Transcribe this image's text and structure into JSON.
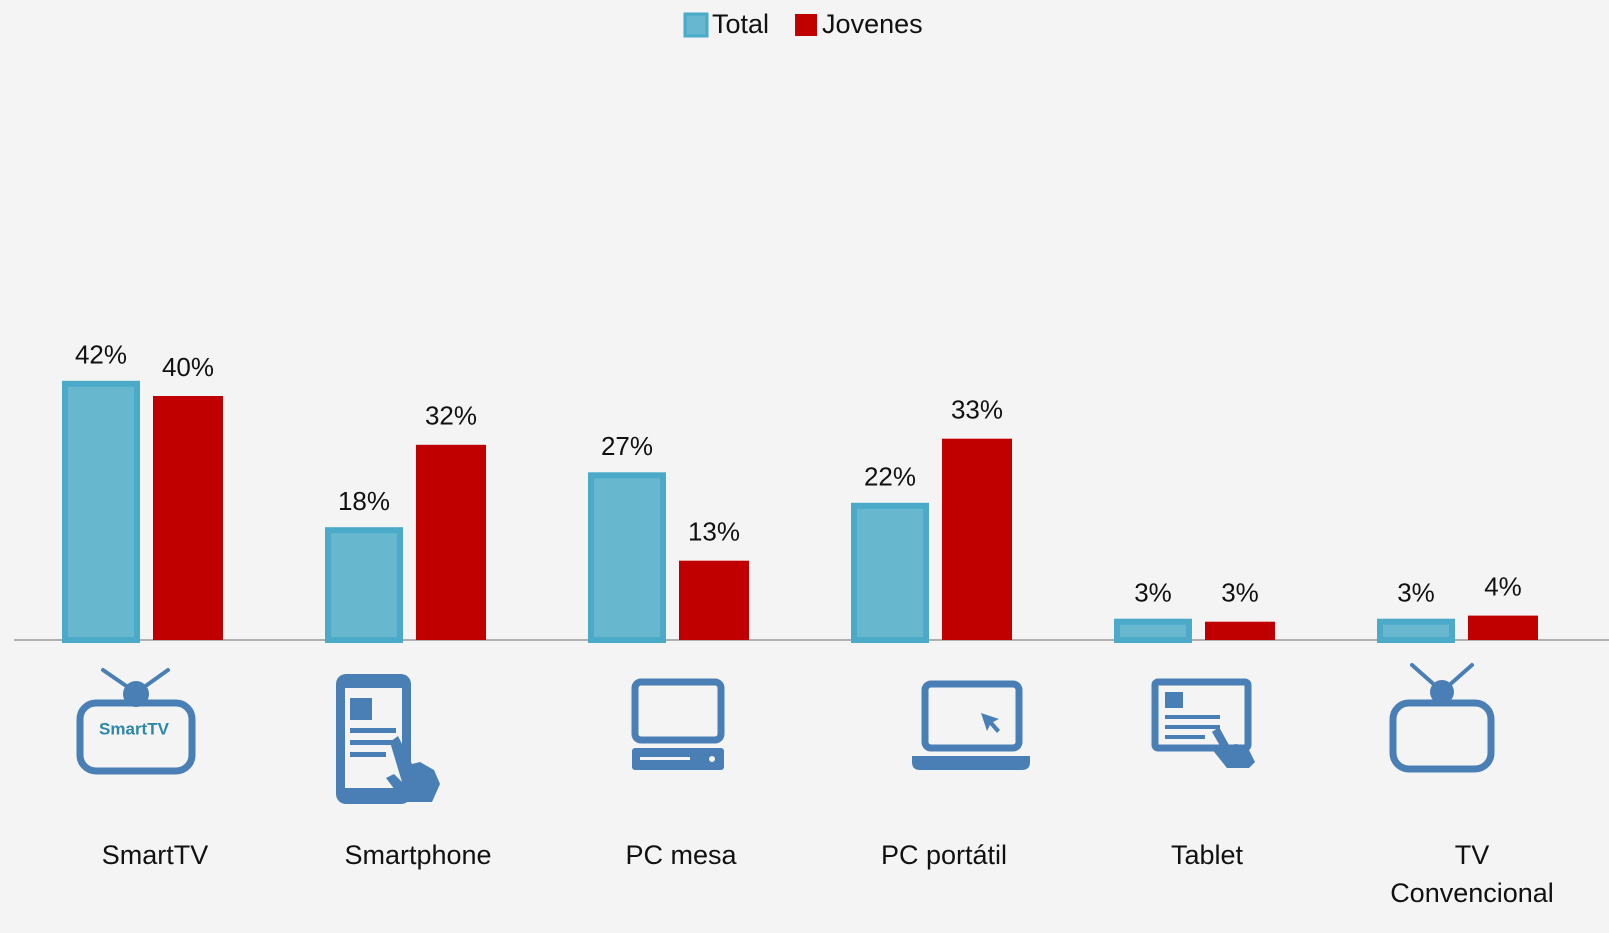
{
  "chart_data": {
    "type": "bar",
    "categories": [
      "SmartTV",
      "Smartphone",
      "PC mesa",
      "PC portátil",
      "Tablet",
      "TV Convencional"
    ],
    "series": [
      {
        "name": "Total",
        "color": "#67b8cf",
        "values": [
          42,
          18,
          27,
          22,
          3,
          3
        ],
        "value_labels": [
          "42%",
          "18%",
          "27%",
          "22%",
          "3%",
          "3%"
        ]
      },
      {
        "name": "Jovenes",
        "color": "#c00000",
        "values": [
          40,
          32,
          13,
          33,
          3,
          4
        ],
        "value_labels": [
          "40%",
          "32%",
          "13%",
          "33%",
          "3%",
          "4%"
        ]
      }
    ],
    "ylim": [
      0,
      100
    ],
    "legend": "top"
  }
}
